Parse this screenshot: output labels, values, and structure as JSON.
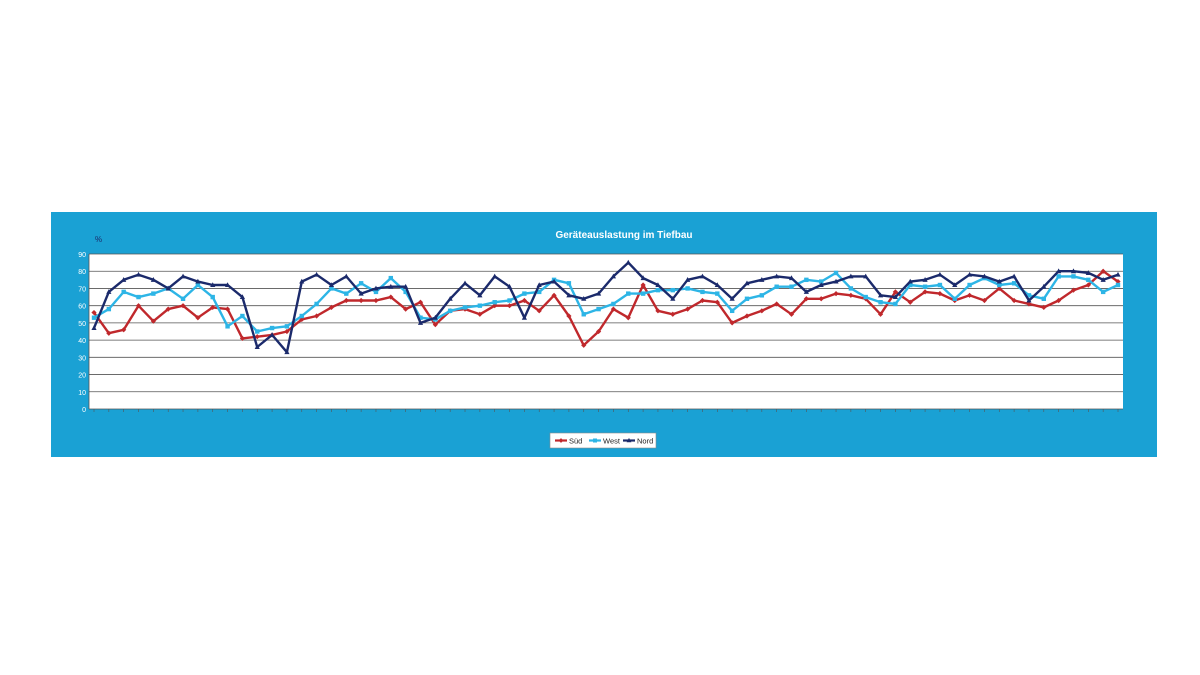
{
  "chart_data": {
    "type": "line",
    "title": "Geräteauslastung im Tiefbau",
    "ylabel": "%",
    "ylim": [
      0,
      90
    ],
    "yticks": [
      0,
      10,
      20,
      30,
      40,
      50,
      60,
      70,
      80,
      90
    ],
    "grid": true,
    "legend_position": "bottom",
    "series": [
      {
        "name": "Süd",
        "color": "#c0282c",
        "values": [
          56,
          44,
          46,
          60,
          51,
          58,
          60,
          53,
          59,
          58,
          41,
          42,
          43,
          45,
          52,
          54,
          59,
          63,
          63,
          63,
          65,
          58,
          62,
          49,
          57,
          58,
          55,
          60,
          60,
          63,
          57,
          66,
          54,
          37,
          45,
          58,
          53,
          72,
          57,
          55,
          58,
          63,
          62,
          50,
          54,
          57,
          61,
          55,
          64,
          64,
          67,
          66,
          64,
          55,
          68,
          62,
          68,
          67,
          63,
          66,
          63,
          70,
          63,
          61,
          59,
          63,
          69,
          72,
          80,
          74
        ]
      },
      {
        "name": "West",
        "color": "#2db5e6",
        "values": [
          53,
          58,
          68,
          65,
          67,
          70,
          64,
          72,
          65,
          48,
          54,
          45,
          47,
          48,
          54,
          61,
          70,
          67,
          73,
          68,
          76,
          68,
          53,
          52,
          57,
          59,
          60,
          62,
          63,
          67,
          68,
          75,
          73,
          55,
          58,
          61,
          67,
          67,
          69,
          69,
          70,
          68,
          67,
          57,
          64,
          66,
          71,
          71,
          75,
          74,
          79,
          70,
          65,
          62,
          61,
          72,
          71,
          72,
          64,
          72,
          76,
          72,
          73,
          66,
          64,
          77,
          77,
          75,
          68,
          72
        ]
      },
      {
        "name": "Nord",
        "color": "#1b2a6b",
        "values": [
          47,
          68,
          75,
          78,
          75,
          70,
          77,
          74,
          72,
          72,
          65,
          36,
          43,
          33,
          74,
          78,
          72,
          77,
          67,
          70,
          71,
          71,
          50,
          53,
          64,
          73,
          66,
          77,
          71,
          53,
          72,
          74,
          66,
          64,
          67,
          77,
          85,
          76,
          72,
          64,
          75,
          77,
          72,
          64,
          73,
          75,
          77,
          76,
          68,
          72,
          74,
          77,
          77,
          66,
          65,
          74,
          75,
          78,
          72,
          78,
          77,
          74,
          77,
          63,
          71,
          80,
          80,
          79,
          75,
          78
        ]
      }
    ]
  }
}
